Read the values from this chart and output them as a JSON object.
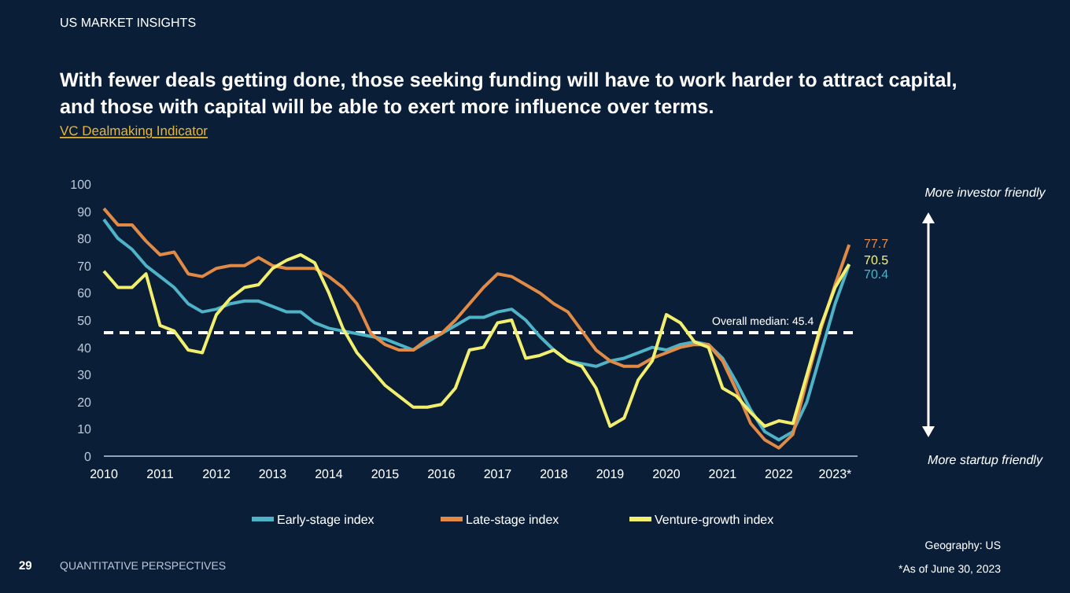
{
  "chart_data": {
    "type": "line",
    "title": "With fewer deals getting done, those seeking funding will have to work harder to attract capital, and those with capital will be able to exert more influence over terms.",
    "subtitle": "VC Dealmaking Indicator",
    "x": [
      2010,
      2010.25,
      2010.5,
      2010.75,
      2011,
      2011.25,
      2011.5,
      2011.75,
      2012,
      2012.25,
      2012.5,
      2012.75,
      2013,
      2013.25,
      2013.5,
      2013.75,
      2014,
      2014.25,
      2014.5,
      2014.75,
      2015,
      2015.25,
      2015.5,
      2015.75,
      2016,
      2016.25,
      2016.5,
      2016.75,
      2017,
      2017.25,
      2017.5,
      2017.75,
      2018,
      2018.25,
      2018.5,
      2018.75,
      2019,
      2019.25,
      2019.5,
      2019.75,
      2020,
      2020.25,
      2020.5,
      2020.75,
      2021,
      2021.25,
      2021.5,
      2021.75,
      2022,
      2022.25,
      2022.5,
      2022.75,
      2023,
      2023.25
    ],
    "series": [
      {
        "name": "Early-stage index",
        "color": "#4fb3c8",
        "values": [
          87,
          80,
          76,
          70,
          66,
          62,
          56,
          53,
          54,
          56,
          57,
          57,
          55,
          53,
          53,
          49,
          47,
          46,
          45,
          44,
          43,
          41,
          39,
          42,
          45,
          48,
          51,
          51,
          53,
          54,
          50,
          44,
          39,
          35,
          34,
          33,
          35,
          36,
          38,
          40,
          39,
          41,
          42,
          41,
          36,
          27,
          17,
          9,
          6,
          9,
          20,
          38,
          56,
          70.4
        ]
      },
      {
        "name": "Late-stage index",
        "color": "#e08a45",
        "values": [
          91,
          85,
          85,
          79,
          74,
          75,
          67,
          66,
          69,
          70,
          70,
          73,
          70,
          69,
          69,
          69,
          66,
          62,
          56,
          45,
          41,
          39,
          39,
          43,
          45,
          50,
          56,
          62,
          67,
          66,
          63,
          60,
          56,
          53,
          46,
          39,
          35,
          33,
          33,
          36,
          38,
          40,
          41,
          41,
          35,
          24,
          12,
          6,
          3,
          8,
          28,
          47,
          63,
          77.7
        ]
      },
      {
        "name": "Venture-growth index",
        "color": "#f2ee6e",
        "values": [
          68,
          62,
          62,
          67,
          48,
          46,
          39,
          38,
          52,
          58,
          62,
          63,
          69,
          72,
          74,
          71,
          60,
          47,
          38,
          32,
          26,
          22,
          18,
          18,
          19,
          25,
          39,
          40,
          49,
          50,
          36,
          37,
          39,
          35,
          33,
          25,
          11,
          14,
          28,
          35,
          52,
          49,
          42,
          40,
          25,
          22,
          16,
          11,
          13,
          12,
          30,
          48,
          62,
          70.5
        ]
      }
    ],
    "xlim": [
      2010,
      2023.4
    ],
    "xticks": [
      2010,
      2011,
      2012,
      2013,
      2014,
      2015,
      2016,
      2017,
      2018,
      2019,
      2020,
      2021,
      2022,
      {
        "value": 2023,
        "label": "2023*"
      }
    ],
    "ylim": [
      0,
      100
    ],
    "yticks": [
      0,
      10,
      20,
      30,
      40,
      50,
      60,
      70,
      80,
      90,
      100
    ],
    "ref_lines": [
      {
        "axis": "y",
        "value": 45.4,
        "label": "Overall median: 45.4",
        "color": "#ffffff",
        "line_style": "dashed"
      }
    ],
    "annotations": [
      "77.7",
      "70.5",
      "70.4",
      "US MARKET INSIGHTS",
      "More investor friendly",
      "More startup friendly",
      "Geography: US",
      "*As of June 30, 2023",
      "29",
      "QUANTITATIVE PERSPECTIVES"
    ],
    "grid": false,
    "legend": "bottom",
    "line_style": "solid",
    "marker": "none"
  }
}
